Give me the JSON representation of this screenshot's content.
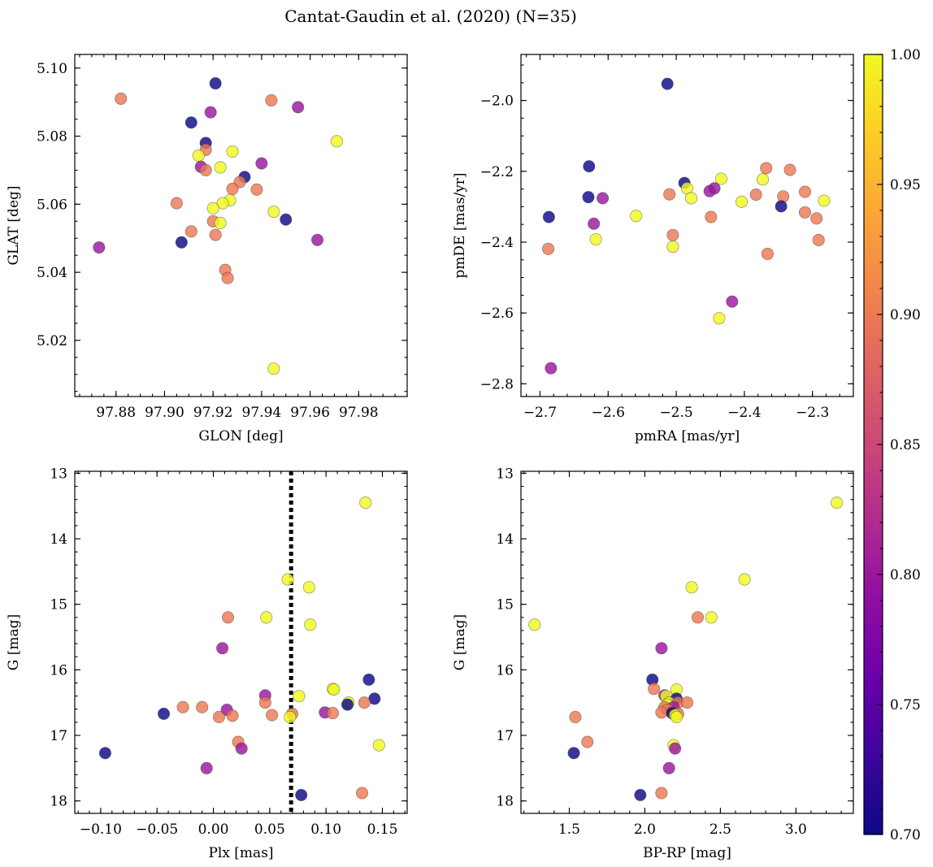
{
  "title": "Cantat-Gaudin et al. (2020) (N=35)",
  "colormap": {
    "name": "plasma",
    "label_min": "0.70",
    "vmin": 0.7,
    "vmax": 1.0,
    "ticks": [
      {
        "value": 0.7,
        "label": "0.70"
      },
      {
        "value": 0.75,
        "label": "0.75"
      },
      {
        "value": 0.8,
        "label": "0.80"
      },
      {
        "value": 0.85,
        "label": "0.85"
      },
      {
        "value": 0.9,
        "label": "0.90"
      },
      {
        "value": 0.95,
        "label": "0.95"
      },
      {
        "value": 1.0,
        "label": "1.00"
      }
    ],
    "stops": [
      "#0d0887",
      "#3e049c",
      "#6a00a8",
      "#8f0da4",
      "#b12a90",
      "#cc4778",
      "#e16462",
      "#f2844b",
      "#fca636",
      "#fcce25",
      "#f0f921"
    ]
  },
  "chart_data": [
    {
      "type": "scatter",
      "id": "sky",
      "xlabel": "GLON [deg]",
      "ylabel": "GLAT [deg]",
      "xlim": [
        97.863,
        98.0
      ],
      "ylim": [
        5.0035,
        5.104
      ],
      "invert_y": false,
      "xticks": [
        {
          "value": 97.88,
          "label": "97.88"
        },
        {
          "value": 97.9,
          "label": "97.90"
        },
        {
          "value": 97.92,
          "label": "97.92"
        },
        {
          "value": 97.94,
          "label": "97.94"
        },
        {
          "value": 97.96,
          "label": "97.96"
        },
        {
          "value": 97.98,
          "label": "97.98"
        }
      ],
      "yticks": [
        {
          "value": 5.02,
          "label": "5.02"
        },
        {
          "value": 5.04,
          "label": "5.04"
        },
        {
          "value": 5.06,
          "label": "5.06"
        },
        {
          "value": 5.08,
          "label": "5.08"
        },
        {
          "value": 5.1,
          "label": "5.10"
        }
      ],
      "x_minor_step": 0.005,
      "y_minor_step": 0.005,
      "points": [
        {
          "x": 97.921,
          "y": 5.0955,
          "c": 0.7
        },
        {
          "x": 97.882,
          "y": 5.091,
          "c": 0.9
        },
        {
          "x": 97.944,
          "y": 5.0905,
          "c": 0.9
        },
        {
          "x": 97.955,
          "y": 5.0885,
          "c": 0.8
        },
        {
          "x": 97.919,
          "y": 5.087,
          "c": 0.8
        },
        {
          "x": 97.911,
          "y": 5.084,
          "c": 0.7
        },
        {
          "x": 97.917,
          "y": 5.078,
          "c": 0.7
        },
        {
          "x": 97.971,
          "y": 5.0785,
          "c": 1.0
        },
        {
          "x": 97.917,
          "y": 5.076,
          "c": 0.9
        },
        {
          "x": 97.928,
          "y": 5.0755,
          "c": 1.0
        },
        {
          "x": 97.914,
          "y": 5.0743,
          "c": 1.0
        },
        {
          "x": 97.94,
          "y": 5.072,
          "c": 0.8
        },
        {
          "x": 97.915,
          "y": 5.071,
          "c": 0.8
        },
        {
          "x": 97.923,
          "y": 5.0708,
          "c": 1.0
        },
        {
          "x": 97.917,
          "y": 5.07,
          "c": 0.9
        },
        {
          "x": 97.933,
          "y": 5.068,
          "c": 0.7
        },
        {
          "x": 97.931,
          "y": 5.0665,
          "c": 0.9
        },
        {
          "x": 97.928,
          "y": 5.0645,
          "c": 0.9
        },
        {
          "x": 97.938,
          "y": 5.0643,
          "c": 0.9
        },
        {
          "x": 97.927,
          "y": 5.0612,
          "c": 1.0
        },
        {
          "x": 97.905,
          "y": 5.0603,
          "c": 0.9
        },
        {
          "x": 97.924,
          "y": 5.0603,
          "c": 1.0
        },
        {
          "x": 97.92,
          "y": 5.0588,
          "c": 1.0
        },
        {
          "x": 97.945,
          "y": 5.0578,
          "c": 1.0
        },
        {
          "x": 97.95,
          "y": 5.0555,
          "c": 0.7
        },
        {
          "x": 97.92,
          "y": 5.055,
          "c": 0.9
        },
        {
          "x": 97.923,
          "y": 5.0545,
          "c": 1.0
        },
        {
          "x": 97.911,
          "y": 5.052,
          "c": 0.9
        },
        {
          "x": 97.921,
          "y": 5.051,
          "c": 0.9
        },
        {
          "x": 97.963,
          "y": 5.0495,
          "c": 0.8
        },
        {
          "x": 97.907,
          "y": 5.0488,
          "c": 0.7
        },
        {
          "x": 97.873,
          "y": 5.0473,
          "c": 0.8
        },
        {
          "x": 97.925,
          "y": 5.0407,
          "c": 0.9
        },
        {
          "x": 97.926,
          "y": 5.0383,
          "c": 0.9
        },
        {
          "x": 97.945,
          "y": 5.0117,
          "c": 1.0
        }
      ]
    },
    {
      "type": "scatter",
      "id": "pm",
      "xlabel": "pmRA [mas/yr]",
      "ylabel": "pmDE [mas/yr]",
      "xlim": [
        -2.728,
        -2.24
      ],
      "ylim": [
        -2.836,
        -1.87
      ],
      "invert_y": false,
      "xticks": [
        {
          "value": -2.7,
          "label": "−2.7"
        },
        {
          "value": -2.6,
          "label": "−2.6"
        },
        {
          "value": -2.5,
          "label": "−2.5"
        },
        {
          "value": -2.4,
          "label": "−2.4"
        },
        {
          "value": -2.3,
          "label": "−2.3"
        }
      ],
      "yticks": [
        {
          "value": -2.8,
          "label": "−2.8"
        },
        {
          "value": -2.6,
          "label": "−2.6"
        },
        {
          "value": -2.4,
          "label": "−2.4"
        },
        {
          "value": -2.2,
          "label": "−2.2"
        },
        {
          "value": -2.0,
          "label": "−2.0"
        }
      ],
      "x_minor_step": 0.02,
      "y_minor_step": 0.05,
      "points": [
        {
          "x": -2.513,
          "y": -1.953,
          "c": 0.7
        },
        {
          "x": -2.628,
          "y": -2.186,
          "c": 0.7
        },
        {
          "x": -2.368,
          "y": -2.191,
          "c": 0.9
        },
        {
          "x": -2.333,
          "y": -2.196,
          "c": 0.9
        },
        {
          "x": -2.434,
          "y": -2.221,
          "c": 1.0
        },
        {
          "x": -2.373,
          "y": -2.223,
          "c": 1.0
        },
        {
          "x": -2.488,
          "y": -2.233,
          "c": 0.7
        },
        {
          "x": -2.484,
          "y": -2.248,
          "c": 1.0
        },
        {
          "x": -2.444,
          "y": -2.248,
          "c": 0.8
        },
        {
          "x": -2.451,
          "y": -2.256,
          "c": 0.8
        },
        {
          "x": -2.311,
          "y": -2.258,
          "c": 0.9
        },
        {
          "x": -2.51,
          "y": -2.265,
          "c": 0.9
        },
        {
          "x": -2.383,
          "y": -2.266,
          "c": 0.9
        },
        {
          "x": -2.343,
          "y": -2.271,
          "c": 0.9
        },
        {
          "x": -2.629,
          "y": -2.273,
          "c": 0.7
        },
        {
          "x": -2.608,
          "y": -2.276,
          "c": 0.8
        },
        {
          "x": -2.478,
          "y": -2.276,
          "c": 1.0
        },
        {
          "x": -2.283,
          "y": -2.283,
          "c": 1.0
        },
        {
          "x": -2.404,
          "y": -2.286,
          "c": 1.0
        },
        {
          "x": -2.346,
          "y": -2.299,
          "c": 0.7
        },
        {
          "x": -2.311,
          "y": -2.316,
          "c": 0.9
        },
        {
          "x": -2.559,
          "y": -2.326,
          "c": 1.0
        },
        {
          "x": -2.687,
          "y": -2.329,
          "c": 0.7
        },
        {
          "x": -2.449,
          "y": -2.329,
          "c": 0.9
        },
        {
          "x": -2.294,
          "y": -2.333,
          "c": 0.9
        },
        {
          "x": -2.621,
          "y": -2.348,
          "c": 0.8
        },
        {
          "x": -2.505,
          "y": -2.38,
          "c": 0.9
        },
        {
          "x": -2.618,
          "y": -2.392,
          "c": 1.0
        },
        {
          "x": -2.291,
          "y": -2.394,
          "c": 0.9
        },
        {
          "x": -2.505,
          "y": -2.413,
          "c": 1.0
        },
        {
          "x": -2.688,
          "y": -2.419,
          "c": 0.9
        },
        {
          "x": -2.366,
          "y": -2.433,
          "c": 0.9
        },
        {
          "x": -2.418,
          "y": -2.568,
          "c": 0.8
        },
        {
          "x": -2.437,
          "y": -2.615,
          "c": 1.0
        },
        {
          "x": -2.684,
          "y": -2.756,
          "c": 0.8
        }
      ]
    },
    {
      "type": "scatter",
      "id": "plx",
      "xlabel": "Plx [mas]",
      "ylabel": "G [mag]",
      "xlim": [
        -0.123,
        0.172
      ],
      "ylim": [
        12.97,
        18.19
      ],
      "invert_y": true,
      "vline": {
        "x": 0.069,
        "style": "dotted"
      },
      "xticks": [
        {
          "value": -0.1,
          "label": "−0.10"
        },
        {
          "value": -0.05,
          "label": "−0.05"
        },
        {
          "value": 0.0,
          "label": "0.00"
        },
        {
          "value": 0.05,
          "label": "0.05"
        },
        {
          "value": 0.1,
          "label": "0.10"
        },
        {
          "value": 0.15,
          "label": "0.15"
        }
      ],
      "yticks": [
        {
          "value": 13,
          "label": "13"
        },
        {
          "value": 14,
          "label": "14"
        },
        {
          "value": 15,
          "label": "15"
        },
        {
          "value": 16,
          "label": "16"
        },
        {
          "value": 17,
          "label": "17"
        },
        {
          "value": 18,
          "label": "18"
        }
      ],
      "x_minor_step": 0.01,
      "y_minor_step": 0.2,
      "points": [
        {
          "x": 0.135,
          "y": 13.45,
          "c": 1.0
        },
        {
          "x": 0.066,
          "y": 14.62,
          "c": 1.0
        },
        {
          "x": 0.085,
          "y": 14.74,
          "c": 1.0
        },
        {
          "x": 0.047,
          "y": 15.2,
          "c": 1.0
        },
        {
          "x": 0.013,
          "y": 15.2,
          "c": 0.9
        },
        {
          "x": 0.086,
          "y": 15.31,
          "c": 1.0
        },
        {
          "x": 0.008,
          "y": 15.67,
          "c": 0.8
        },
        {
          "x": 0.138,
          "y": 16.15,
          "c": 0.7
        },
        {
          "x": 0.106,
          "y": 16.29,
          "c": 1.0
        },
        {
          "x": 0.107,
          "y": 16.3,
          "c": 1.0
        },
        {
          "x": 0.046,
          "y": 16.39,
          "c": 0.8
        },
        {
          "x": 0.076,
          "y": 16.4,
          "c": 1.0
        },
        {
          "x": 0.143,
          "y": 16.44,
          "c": 0.7
        },
        {
          "x": 0.046,
          "y": 16.5,
          "c": 0.9
        },
        {
          "x": 0.12,
          "y": 16.5,
          "c": 1.0
        },
        {
          "x": 0.134,
          "y": 16.5,
          "c": 0.9
        },
        {
          "x": 0.119,
          "y": 16.53,
          "c": 0.7
        },
        {
          "x": -0.027,
          "y": 16.57,
          "c": 0.9
        },
        {
          "x": -0.01,
          "y": 16.57,
          "c": 0.9
        },
        {
          "x": 0.012,
          "y": 16.61,
          "c": 0.8
        },
        {
          "x": 0.099,
          "y": 16.65,
          "c": 0.8
        },
        {
          "x": 0.106,
          "y": 16.66,
          "c": 0.9
        },
        {
          "x": -0.044,
          "y": 16.67,
          "c": 0.7
        },
        {
          "x": 0.07,
          "y": 16.67,
          "c": 0.9
        },
        {
          "x": 0.052,
          "y": 16.69,
          "c": 0.9
        },
        {
          "x": 0.017,
          "y": 16.7,
          "c": 0.9
        },
        {
          "x": 0.005,
          "y": 16.72,
          "c": 0.9
        },
        {
          "x": 0.068,
          "y": 16.72,
          "c": 1.0
        },
        {
          "x": 0.022,
          "y": 17.1,
          "c": 0.9
        },
        {
          "x": 0.147,
          "y": 17.15,
          "c": 1.0
        },
        {
          "x": 0.025,
          "y": 17.2,
          "c": 0.8
        },
        {
          "x": -0.096,
          "y": 17.27,
          "c": 0.7
        },
        {
          "x": -0.006,
          "y": 17.5,
          "c": 0.8
        },
        {
          "x": 0.132,
          "y": 17.88,
          "c": 0.9
        },
        {
          "x": 0.078,
          "y": 17.91,
          "c": 0.7
        }
      ]
    },
    {
      "type": "scatter",
      "id": "cmd",
      "xlabel": "BP-RP [mag]",
      "ylabel": "G [mag]",
      "xlim": [
        1.18,
        3.38
      ],
      "ylim": [
        12.97,
        18.19
      ],
      "invert_y": true,
      "xticks": [
        {
          "value": 1.5,
          "label": "1.5"
        },
        {
          "value": 2.0,
          "label": "2.0"
        },
        {
          "value": 2.5,
          "label": "2.5"
        },
        {
          "value": 3.0,
          "label": "3.0"
        }
      ],
      "yticks": [
        {
          "value": 13,
          "label": "13"
        },
        {
          "value": 14,
          "label": "14"
        },
        {
          "value": 15,
          "label": "15"
        },
        {
          "value": 16,
          "label": "16"
        },
        {
          "value": 17,
          "label": "17"
        },
        {
          "value": 18,
          "label": "18"
        }
      ],
      "x_minor_step": 0.1,
      "y_minor_step": 0.2,
      "points": [
        {
          "x": 3.27,
          "y": 13.45,
          "c": 1.0
        },
        {
          "x": 2.66,
          "y": 14.62,
          "c": 1.0
        },
        {
          "x": 2.31,
          "y": 14.74,
          "c": 1.0
        },
        {
          "x": 2.35,
          "y": 15.2,
          "c": 0.9
        },
        {
          "x": 2.44,
          "y": 15.2,
          "c": 1.0
        },
        {
          "x": 1.27,
          "y": 15.31,
          "c": 1.0
        },
        {
          "x": 2.11,
          "y": 15.67,
          "c": 0.8
        },
        {
          "x": 2.05,
          "y": 16.15,
          "c": 0.7
        },
        {
          "x": 2.06,
          "y": 16.29,
          "c": 0.9
        },
        {
          "x": 2.21,
          "y": 16.3,
          "c": 1.0
        },
        {
          "x": 2.13,
          "y": 16.39,
          "c": 0.8
        },
        {
          "x": 2.14,
          "y": 16.4,
          "c": 1.0
        },
        {
          "x": 2.21,
          "y": 16.44,
          "c": 0.7
        },
        {
          "x": 2.16,
          "y": 16.5,
          "c": 1.0
        },
        {
          "x": 2.22,
          "y": 16.5,
          "c": 0.9
        },
        {
          "x": 2.28,
          "y": 16.5,
          "c": 0.9
        },
        {
          "x": 2.15,
          "y": 16.53,
          "c": 1.0
        },
        {
          "x": 2.13,
          "y": 16.57,
          "c": 0.9
        },
        {
          "x": 2.19,
          "y": 16.57,
          "c": 0.8
        },
        {
          "x": 2.15,
          "y": 16.61,
          "c": 0.9
        },
        {
          "x": 2.11,
          "y": 16.65,
          "c": 0.9
        },
        {
          "x": 2.18,
          "y": 16.66,
          "c": 0.7
        },
        {
          "x": 2.22,
          "y": 16.67,
          "c": 0.9
        },
        {
          "x": 2.2,
          "y": 16.69,
          "c": 1.0
        },
        {
          "x": 2.21,
          "y": 16.72,
          "c": 1.0
        },
        {
          "x": 1.54,
          "y": 16.72,
          "c": 0.9
        },
        {
          "x": 1.62,
          "y": 17.1,
          "c": 0.9
        },
        {
          "x": 2.19,
          "y": 17.15,
          "c": 1.0
        },
        {
          "x": 2.2,
          "y": 17.2,
          "c": 0.8
        },
        {
          "x": 1.53,
          "y": 17.27,
          "c": 0.7
        },
        {
          "x": 2.16,
          "y": 17.5,
          "c": 0.8
        },
        {
          "x": 2.11,
          "y": 17.88,
          "c": 0.9
        },
        {
          "x": 1.97,
          "y": 17.91,
          "c": 0.7
        }
      ]
    }
  ]
}
